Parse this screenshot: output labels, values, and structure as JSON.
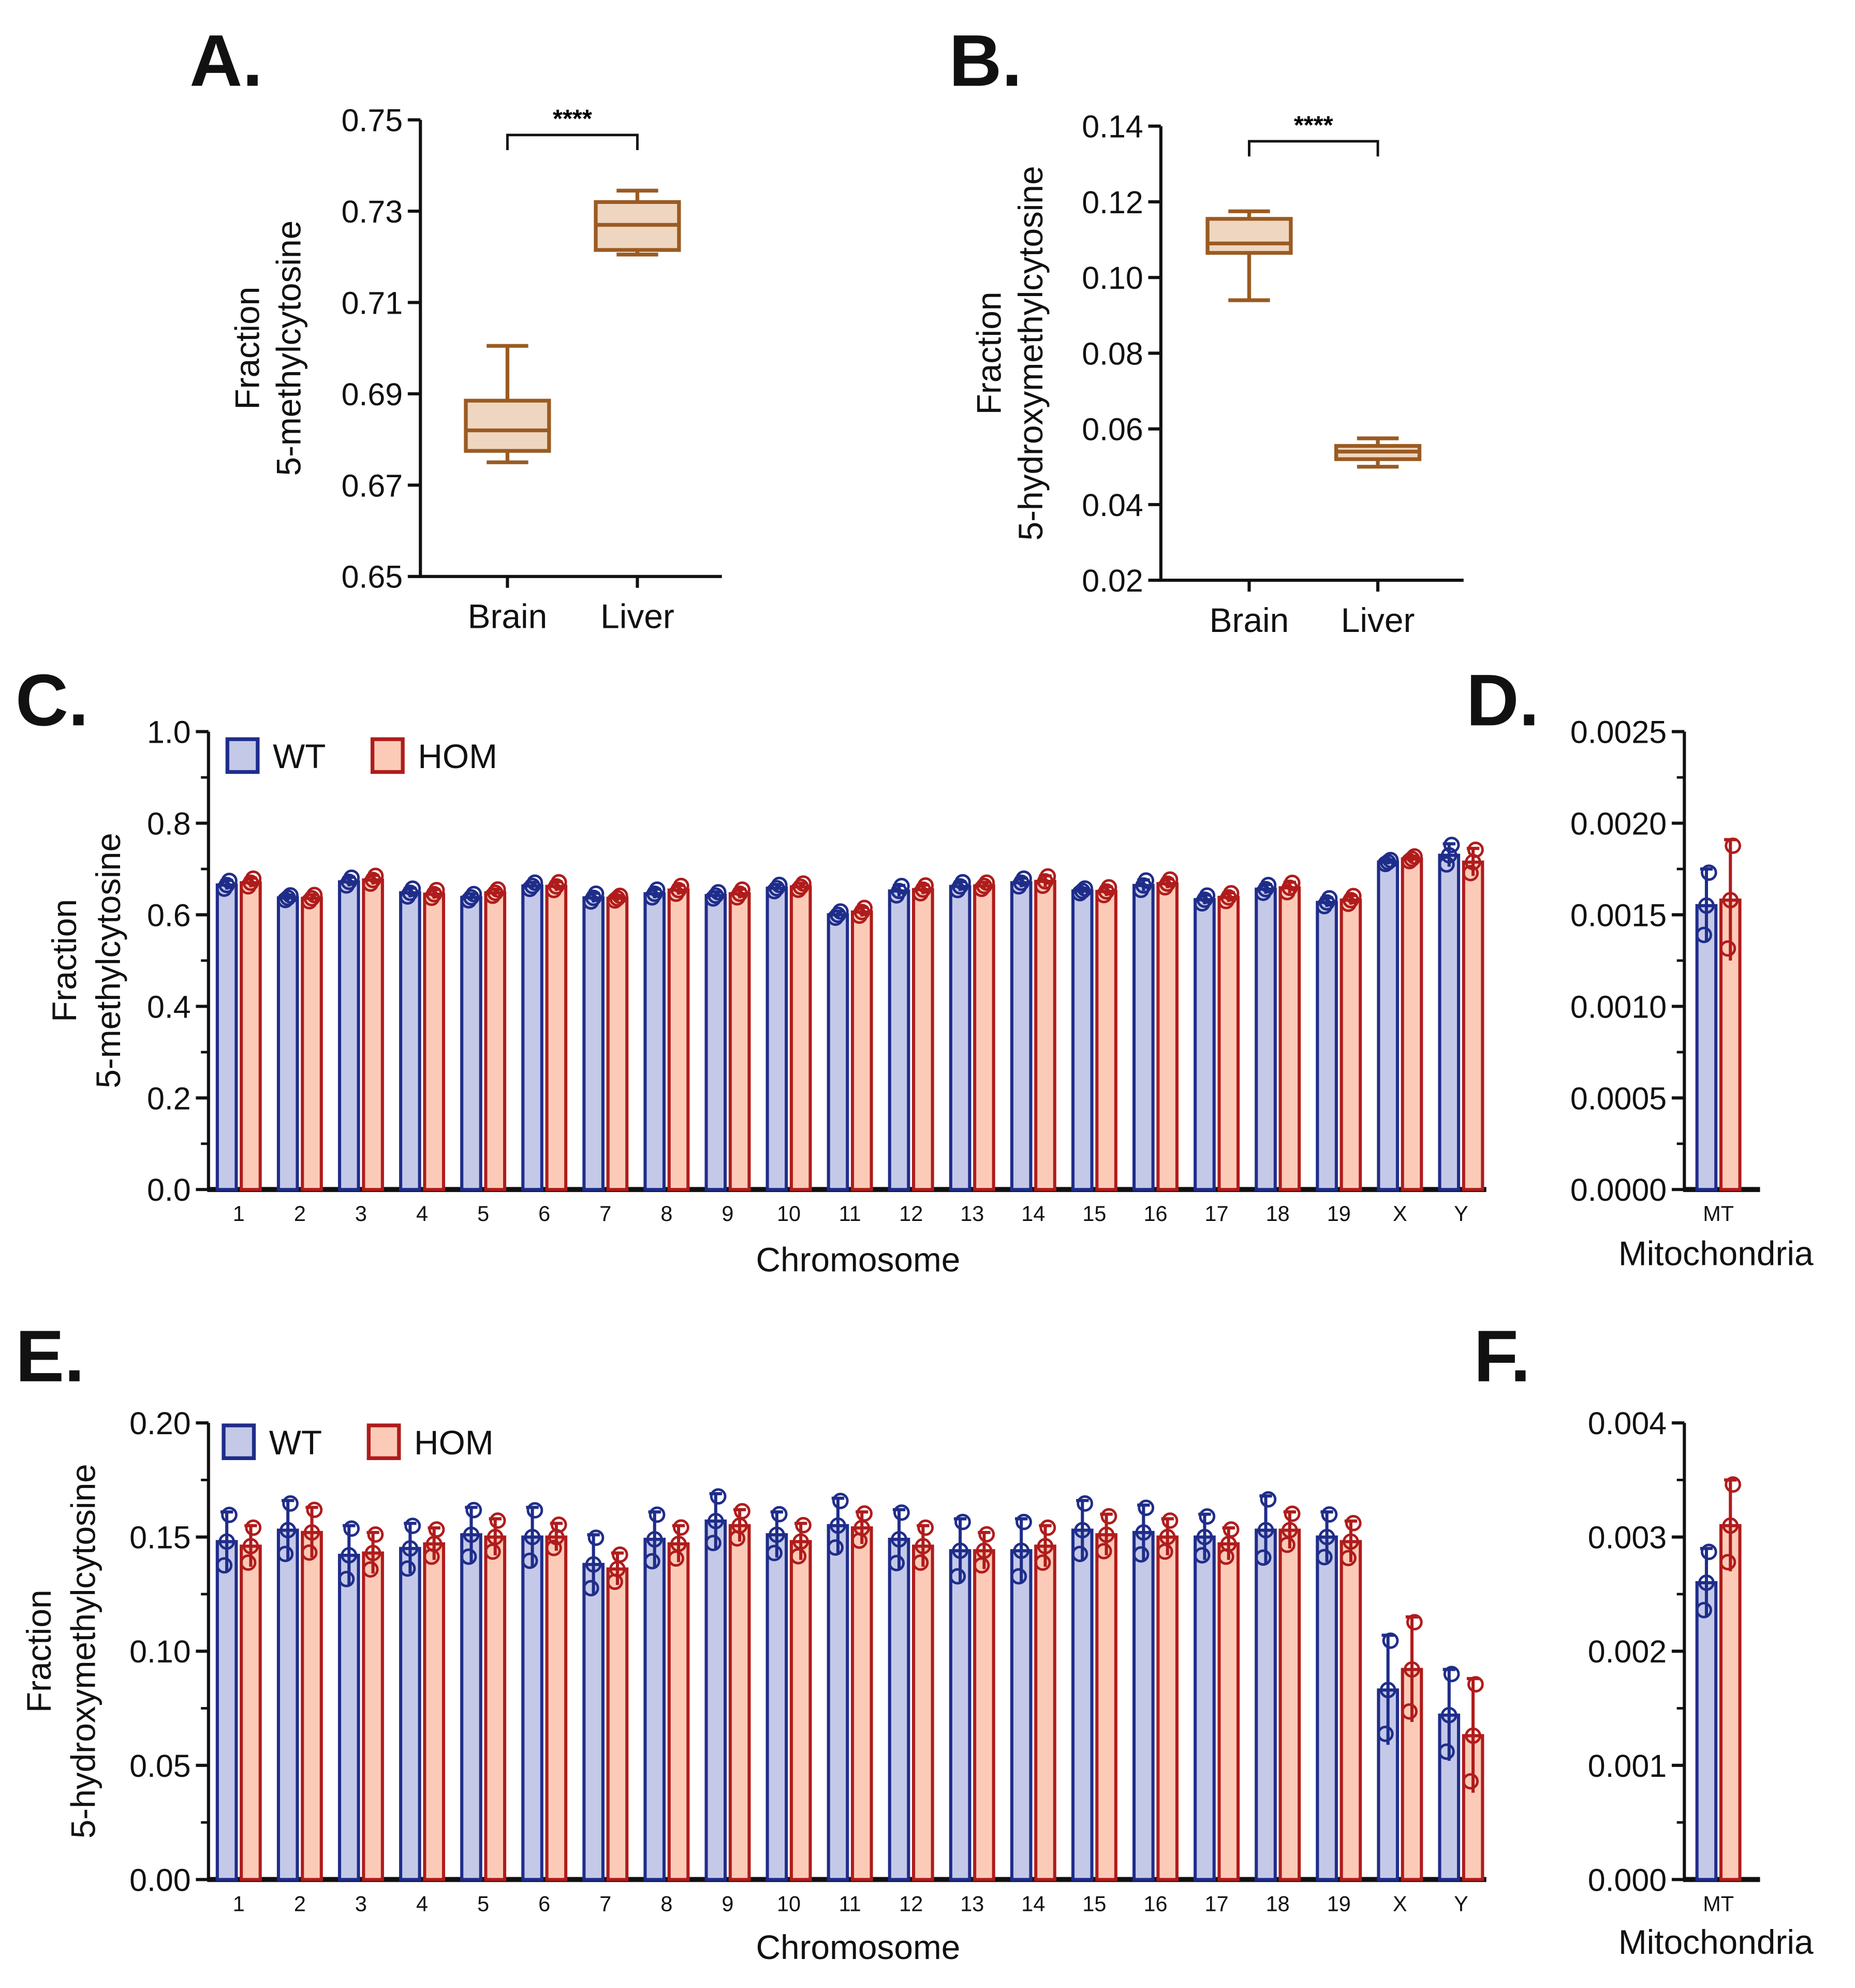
{
  "colors": {
    "wt_fill": "#c4c9e8",
    "wt_stroke": "#1f2d8a",
    "hom_fill": "#fccbb8",
    "hom_stroke": "#b01c1c",
    "box_fill": "#efd6c0",
    "box_stroke": "#9a5b22"
  },
  "chart_data": [
    {
      "id": "A",
      "panel_label": "A.",
      "type": "box",
      "ylabel": [
        "Fraction",
        "5-methylcytosine"
      ],
      "ylim": [
        0.65,
        0.75
      ],
      "yticks": [
        "0.65",
        "0.67",
        "0.69",
        "0.71",
        "0.73",
        "0.75"
      ],
      "yticks_v": [
        0.65,
        0.67,
        0.69,
        0.71,
        0.73,
        0.75
      ],
      "categories": [
        "Brain",
        "Liver"
      ],
      "boxes": [
        {
          "min": 0.675,
          "q1": 0.6775,
          "median": 0.682,
          "q3": 0.6885,
          "max": 0.7005
        },
        {
          "min": 0.7205,
          "q1": 0.7215,
          "median": 0.727,
          "q3": 0.732,
          "max": 0.7345
        }
      ],
      "annotation": "****"
    },
    {
      "id": "B",
      "panel_label": "B.",
      "type": "box",
      "ylabel": [
        "Fraction",
        "5-hydroxymethylcytosine"
      ],
      "ylim": [
        0.02,
        0.14
      ],
      "yticks": [
        "0.02",
        "0.04",
        "0.06",
        "0.08",
        "0.10",
        "0.12",
        "0.14"
      ],
      "yticks_v": [
        0.02,
        0.04,
        0.06,
        0.08,
        0.1,
        0.12,
        0.14
      ],
      "categories": [
        "Brain",
        "Liver"
      ],
      "boxes": [
        {
          "min": 0.094,
          "q1": 0.1065,
          "median": 0.109,
          "q3": 0.1155,
          "max": 0.1175
        },
        {
          "min": 0.05,
          "q1": 0.052,
          "median": 0.054,
          "q3": 0.0555,
          "max": 0.0575
        }
      ],
      "annotation": "****"
    },
    {
      "id": "C",
      "panel_label": "C.",
      "type": "bar",
      "xlabel": "Chromosome",
      "ylabel": [
        "Fraction",
        "5-methylcytosine"
      ],
      "ylim": [
        0,
        1.0
      ],
      "yticks": [
        "0.0",
        "0.2",
        "0.4",
        "0.6",
        "0.8",
        "1.0"
      ],
      "yticks_v": [
        0,
        0.2,
        0.4,
        0.6,
        0.8,
        1.0
      ],
      "legend": [
        "WT",
        "HOM"
      ],
      "categories": [
        "1",
        "2",
        "3",
        "4",
        "5",
        "6",
        "7",
        "8",
        "9",
        "10",
        "11",
        "12",
        "13",
        "14",
        "15",
        "16",
        "17",
        "18",
        "19",
        "X",
        "Y"
      ],
      "series": [
        {
          "name": "WT",
          "values": [
            0.665,
            0.637,
            0.672,
            0.648,
            0.638,
            0.663,
            0.637,
            0.646,
            0.642,
            0.658,
            0.6,
            0.652,
            0.662,
            0.67,
            0.652,
            0.664,
            0.633,
            0.656,
            0.627,
            0.715,
            0.73
          ],
          "sd": [
            0.01,
            0.006,
            0.01,
            0.01,
            0.008,
            0.008,
            0.01,
            0.01,
            0.008,
            0.008,
            0.008,
            0.012,
            0.01,
            0.01,
            0.006,
            0.012,
            0.01,
            0.01,
            0.01,
            0.005,
            0.025
          ]
        },
        {
          "name": "HOM",
          "values": [
            0.67,
            0.636,
            0.676,
            0.645,
            0.648,
            0.662,
            0.636,
            0.654,
            0.646,
            0.661,
            0.606,
            0.655,
            0.663,
            0.673,
            0.651,
            0.668,
            0.638,
            0.659,
            0.632,
            0.722,
            0.715
          ],
          "sd": [
            0.01,
            0.008,
            0.01,
            0.01,
            0.008,
            0.01,
            0.006,
            0.01,
            0.01,
            0.008,
            0.01,
            0.01,
            0.008,
            0.012,
            0.01,
            0.01,
            0.01,
            0.012,
            0.01,
            0.006,
            0.03
          ]
        }
      ]
    },
    {
      "id": "D",
      "panel_label": "D.",
      "type": "bar",
      "xlabel": "Mitochondria",
      "ylim": [
        0,
        0.0025
      ],
      "yticks": [
        "0.0000",
        "0.0005",
        "0.0010",
        "0.0015",
        "0.0020",
        "0.0025"
      ],
      "yticks_v": [
        0,
        0.0005,
        0.001,
        0.0015,
        0.002,
        0.0025
      ],
      "categories": [
        "MT"
      ],
      "series": [
        {
          "name": "WT",
          "values": [
            0.00155
          ],
          "sd": [
            0.0002
          ]
        },
        {
          "name": "HOM",
          "values": [
            0.00158
          ],
          "sd": [
            0.00033
          ]
        }
      ]
    },
    {
      "id": "E",
      "panel_label": "E.",
      "type": "bar",
      "xlabel": "Chromosome",
      "ylabel": [
        "Fraction",
        "5-hydroxymethylcytosine"
      ],
      "ylim": [
        0,
        0.2
      ],
      "yticks": [
        "0.00",
        "0.05",
        "0.10",
        "0.15",
        "0.20"
      ],
      "yticks_v": [
        0,
        0.05,
        0.1,
        0.15,
        0.2
      ],
      "legend": [
        "WT",
        "HOM"
      ],
      "categories": [
        "1",
        "2",
        "3",
        "4",
        "5",
        "6",
        "7",
        "8",
        "9",
        "10",
        "11",
        "12",
        "13",
        "14",
        "15",
        "16",
        "17",
        "18",
        "19",
        "X",
        "Y"
      ],
      "series": [
        {
          "name": "WT",
          "values": [
            0.148,
            0.153,
            0.142,
            0.145,
            0.151,
            0.15,
            0.138,
            0.149,
            0.157,
            0.151,
            0.155,
            0.149,
            0.144,
            0.144,
            0.153,
            0.152,
            0.15,
            0.153,
            0.15,
            0.083,
            0.072
          ],
          "sd": [
            0.013,
            0.013,
            0.013,
            0.011,
            0.012,
            0.013,
            0.013,
            0.012,
            0.012,
            0.01,
            0.012,
            0.013,
            0.014,
            0.014,
            0.013,
            0.012,
            0.01,
            0.015,
            0.011,
            0.024,
            0.02
          ]
        },
        {
          "name": "HOM",
          "values": [
            0.146,
            0.152,
            0.143,
            0.147,
            0.15,
            0.15,
            0.136,
            0.147,
            0.155,
            0.148,
            0.154,
            0.146,
            0.144,
            0.146,
            0.151,
            0.15,
            0.147,
            0.153,
            0.148,
            0.092,
            0.063
          ],
          "sd": [
            0.009,
            0.011,
            0.009,
            0.007,
            0.008,
            0.006,
            0.007,
            0.008,
            0.007,
            0.008,
            0.007,
            0.009,
            0.008,
            0.009,
            0.009,
            0.008,
            0.007,
            0.008,
            0.009,
            0.023,
            0.025
          ]
        }
      ]
    },
    {
      "id": "F",
      "panel_label": "F.",
      "type": "bar",
      "xlabel": "Mitochondria",
      "ylim": [
        0,
        0.004
      ],
      "yticks": [
        "0.000",
        "0.001",
        "0.002",
        "0.003",
        "0.004"
      ],
      "yticks_v": [
        0,
        0.001,
        0.002,
        0.003,
        0.004
      ],
      "categories": [
        "MT"
      ],
      "series": [
        {
          "name": "WT",
          "values": [
            0.0026
          ],
          "sd": [
            0.0003
          ]
        },
        {
          "name": "HOM",
          "values": [
            0.0031
          ],
          "sd": [
            0.0004
          ]
        }
      ]
    }
  ]
}
